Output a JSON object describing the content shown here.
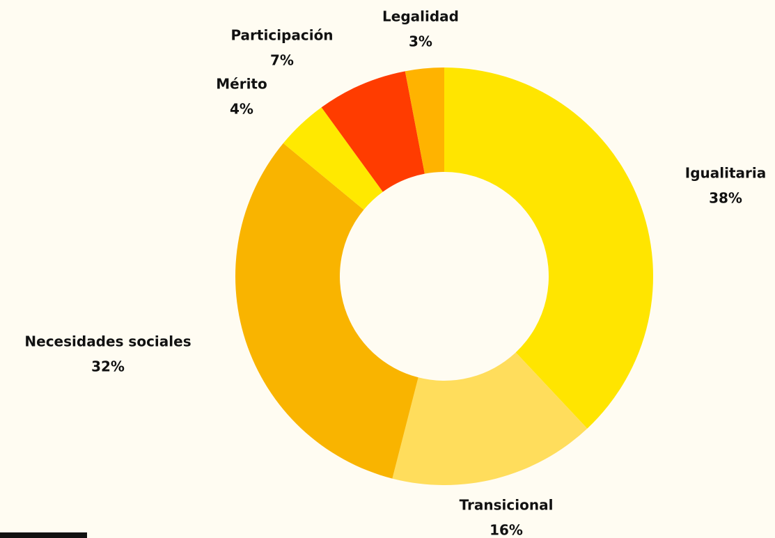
{
  "chart_data": {
    "type": "donut",
    "categories": [
      "Igualitaria",
      "Transicional",
      "Necesidades sociales",
      "Mérito",
      "Participación",
      "Legalidad"
    ],
    "values": [
      38,
      16,
      32,
      4,
      7,
      3
    ],
    "value_labels": [
      "38%",
      "16%",
      "32%",
      "4%",
      "7%",
      "3%"
    ],
    "colors": [
      "#ffe500",
      "#ffdd5c",
      "#f9b400",
      "#ffe900",
      "#ff3c00",
      "#ffb300"
    ]
  }
}
